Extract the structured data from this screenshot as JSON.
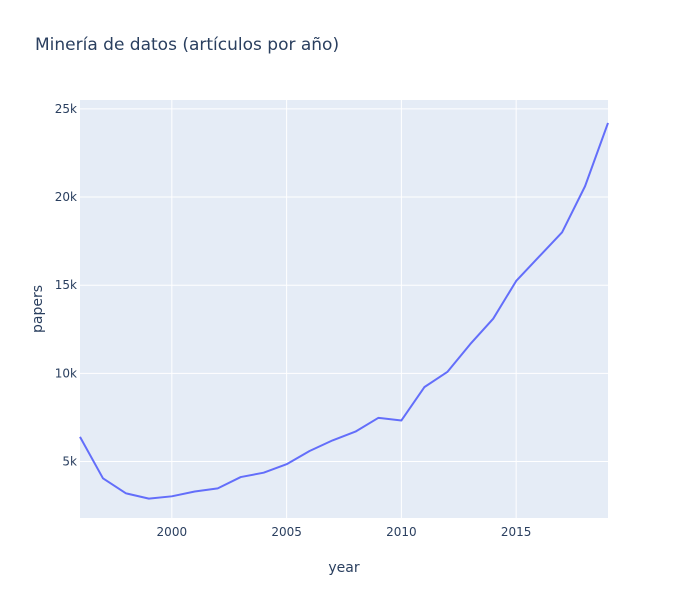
{
  "chart_data": {
    "type": "line",
    "title": "Minería de datos (artículos por año)",
    "xlabel": "year",
    "ylabel": "papers",
    "xlim": [
      1996,
      2019
    ],
    "ylim": [
      1800,
      25500
    ],
    "x_ticks": [
      2000,
      2005,
      2010,
      2015
    ],
    "y_ticks": [
      5000,
      10000,
      15000,
      20000,
      25000
    ],
    "x_tick_labels": [
      "2000",
      "2005",
      "2010",
      "2015"
    ],
    "y_tick_labels": [
      "5k",
      "10k",
      "15k",
      "20k",
      "25k"
    ],
    "grid": true,
    "legend": "none",
    "colors": {
      "line": "#636efa",
      "plot_bg": "#e5ecf6",
      "grid": "#ffffff",
      "text": "#2a3f5f"
    },
    "series": [
      {
        "x": [
          1996,
          1997,
          1998,
          1999,
          2000,
          2001,
          2002,
          2003,
          2004,
          2005,
          2006,
          2007,
          2008,
          2009,
          2010,
          2011,
          2012,
          2013,
          2014,
          2015,
          2016,
          2017,
          2018,
          2019
        ],
        "values": [
          6400,
          4050,
          3200,
          2900,
          3030,
          3300,
          3480,
          4120,
          4370,
          4850,
          5600,
          6200,
          6700,
          7480,
          7330,
          9220,
          10080,
          11660,
          13100,
          15240,
          16620,
          18000,
          20610,
          24200
        ]
      }
    ]
  }
}
